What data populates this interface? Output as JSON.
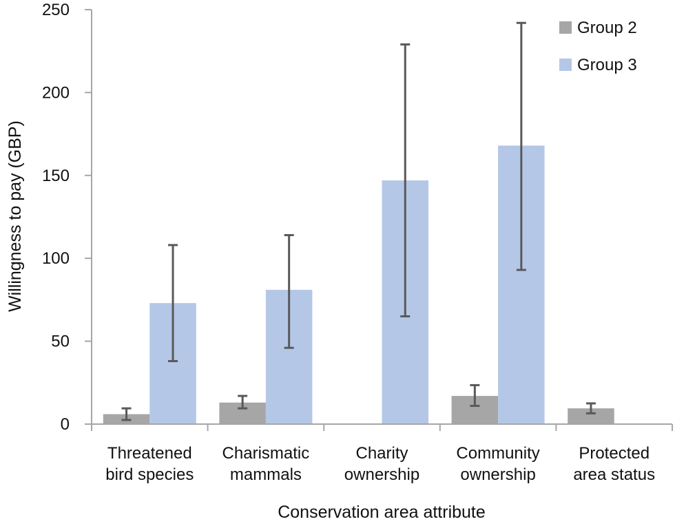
{
  "chart_data": {
    "type": "bar",
    "title": "",
    "xlabel": "Conservation area attribute",
    "ylabel": "Willingness to pay (GBP)",
    "ylim": [
      0,
      250
    ],
    "yticks": [
      0,
      50,
      100,
      150,
      200,
      250
    ],
    "grid": false,
    "legend_position": "top-right",
    "categories": [
      [
        "Threatened",
        "bird species"
      ],
      [
        "Charismatic",
        "mammals"
      ],
      [
        "Charity",
        "ownership"
      ],
      [
        "Community",
        "ownership"
      ],
      [
        "Protected",
        "area status"
      ]
    ],
    "series": [
      {
        "name": "Group 2",
        "color": "#a6a6a6",
        "values": [
          6,
          13,
          null,
          17,
          9.5
        ],
        "error_low": [
          2.5,
          9.5,
          null,
          11,
          6.5
        ],
        "error_high": [
          9.5,
          17,
          null,
          23.5,
          12.5
        ]
      },
      {
        "name": "Group 3",
        "color": "#b4c7e7",
        "values": [
          73,
          81,
          147,
          168,
          null
        ],
        "error_low": [
          38,
          46,
          65,
          93,
          null
        ],
        "error_high": [
          108,
          114,
          229,
          242,
          null
        ]
      }
    ],
    "error_bar_color": "#595959",
    "axis_color": "#a6a6a6"
  }
}
